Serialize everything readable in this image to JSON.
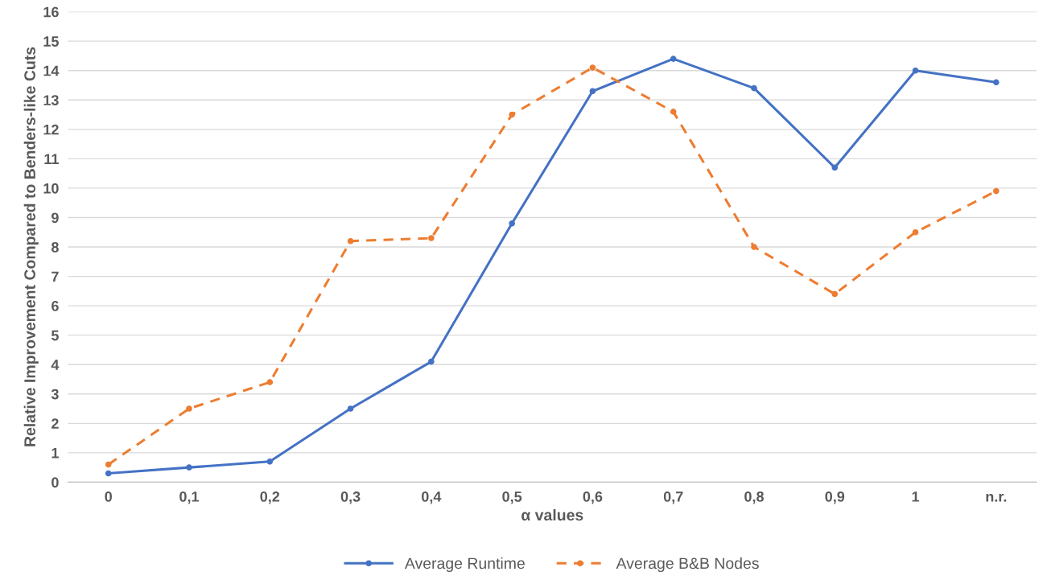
{
  "chart_data": {
    "type": "line",
    "xlabel": "α values",
    "ylabel": "Relative Improvement Compared to Benders-like Cuts",
    "categories": [
      "0",
      "0,1",
      "0,2",
      "0,3",
      "0,4",
      "0,5",
      "0,6",
      "0,7",
      "0,8",
      "0,9",
      "1",
      "n.r."
    ],
    "series": [
      {
        "name": "Average Runtime",
        "color": "#4472c4",
        "line_style": "solid",
        "values": [
          0.3,
          0.5,
          0.7,
          2.5,
          4.1,
          8.8,
          13.3,
          14.4,
          13.4,
          10.7,
          14.0,
          13.6
        ]
      },
      {
        "name": "Average B&B Nodes",
        "color": "#ed7d31",
        "line_style": "dashed",
        "values": [
          0.6,
          2.5,
          3.4,
          8.2,
          8.3,
          12.5,
          14.1,
          12.6,
          8.0,
          6.4,
          8.5,
          9.9
        ]
      }
    ],
    "ylim": [
      0,
      16
    ],
    "yticks": [
      0,
      1,
      2,
      3,
      4,
      5,
      6,
      7,
      8,
      9,
      10,
      11,
      12,
      13,
      14,
      15,
      16
    ],
    "grid": "y",
    "legend": "bottom",
    "marker": "circle"
  }
}
